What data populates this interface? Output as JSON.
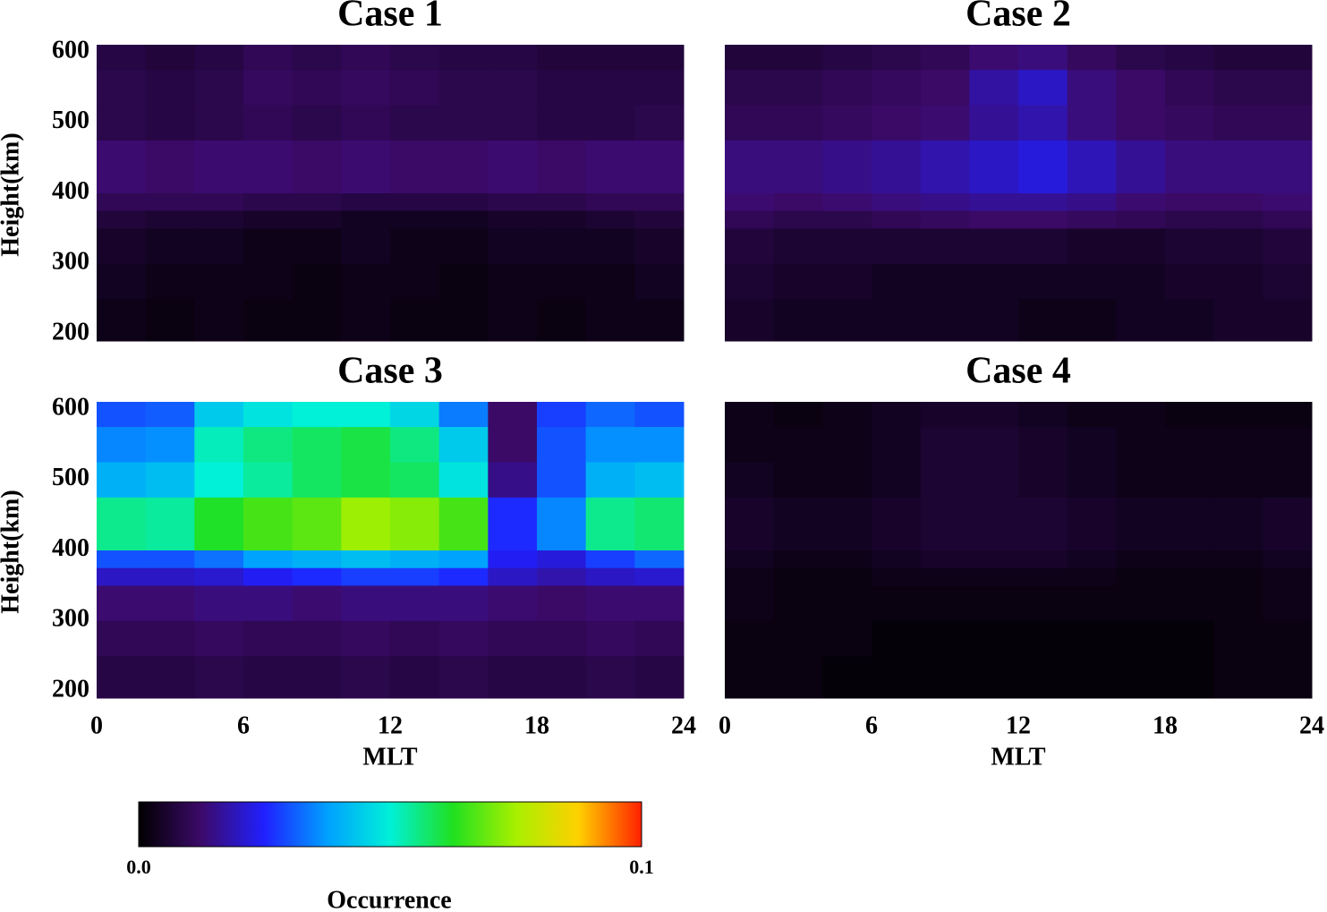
{
  "chart_data": [
    {
      "type": "heatmap",
      "title": "Case 1",
      "y_label": "Height(km)",
      "x_bins": [
        0,
        2,
        4,
        6,
        8,
        10,
        12,
        14,
        16,
        18,
        20,
        22,
        24
      ],
      "y_bins": [
        190,
        250,
        300,
        350,
        375,
        400,
        475,
        525,
        575,
        610
      ],
      "xlim": [
        0,
        24
      ],
      "ylim": [
        190,
        610
      ],
      "yticks": [
        200,
        300,
        400,
        500,
        600
      ],
      "values": [
        [
          0.003,
          0.002,
          0.003,
          0.002,
          0.002,
          0.003,
          0.002,
          0.002,
          0.003,
          0.002,
          0.003,
          0.003
        ],
        [
          0.004,
          0.003,
          0.003,
          0.003,
          0.002,
          0.003,
          0.003,
          0.002,
          0.003,
          0.003,
          0.003,
          0.004
        ],
        [
          0.005,
          0.004,
          0.004,
          0.003,
          0.003,
          0.004,
          0.003,
          0.003,
          0.004,
          0.004,
          0.004,
          0.005
        ],
        [
          0.007,
          0.006,
          0.006,
          0.005,
          0.005,
          0.004,
          0.004,
          0.004,
          0.005,
          0.005,
          0.006,
          0.007
        ],
        [
          0.01,
          0.01,
          0.01,
          0.009,
          0.009,
          0.008,
          0.008,
          0.008,
          0.009,
          0.009,
          0.01,
          0.01
        ],
        [
          0.013,
          0.012,
          0.013,
          0.013,
          0.012,
          0.013,
          0.012,
          0.012,
          0.013,
          0.012,
          0.013,
          0.013
        ],
        [
          0.009,
          0.008,
          0.009,
          0.01,
          0.009,
          0.01,
          0.009,
          0.009,
          0.009,
          0.008,
          0.008,
          0.009
        ],
        [
          0.009,
          0.008,
          0.009,
          0.011,
          0.01,
          0.011,
          0.01,
          0.009,
          0.009,
          0.008,
          0.008,
          0.008
        ],
        [
          0.008,
          0.007,
          0.008,
          0.01,
          0.009,
          0.01,
          0.009,
          0.008,
          0.008,
          0.007,
          0.007,
          0.007
        ]
      ]
    },
    {
      "type": "heatmap",
      "title": "Case 2",
      "x_bins": [
        0,
        2,
        4,
        6,
        8,
        10,
        12,
        14,
        16,
        18,
        20,
        22,
        24
      ],
      "y_bins": [
        190,
        250,
        300,
        350,
        375,
        400,
        475,
        525,
        575,
        610
      ],
      "xlim": [
        0,
        24
      ],
      "ylim": [
        190,
        610
      ],
      "values": [
        [
          0.005,
          0.004,
          0.004,
          0.004,
          0.004,
          0.004,
          0.003,
          0.003,
          0.004,
          0.004,
          0.005,
          0.005
        ],
        [
          0.006,
          0.005,
          0.005,
          0.004,
          0.004,
          0.004,
          0.004,
          0.004,
          0.004,
          0.005,
          0.005,
          0.006
        ],
        [
          0.007,
          0.006,
          0.006,
          0.006,
          0.006,
          0.006,
          0.006,
          0.005,
          0.005,
          0.006,
          0.006,
          0.007
        ],
        [
          0.01,
          0.009,
          0.009,
          0.01,
          0.011,
          0.012,
          0.012,
          0.011,
          0.01,
          0.009,
          0.009,
          0.01
        ],
        [
          0.013,
          0.012,
          0.013,
          0.014,
          0.015,
          0.016,
          0.016,
          0.015,
          0.013,
          0.012,
          0.012,
          0.013
        ],
        [
          0.014,
          0.014,
          0.015,
          0.016,
          0.018,
          0.02,
          0.022,
          0.019,
          0.016,
          0.014,
          0.014,
          0.014
        ],
        [
          0.01,
          0.01,
          0.011,
          0.012,
          0.013,
          0.016,
          0.018,
          0.014,
          0.012,
          0.011,
          0.01,
          0.01
        ],
        [
          0.009,
          0.009,
          0.01,
          0.011,
          0.012,
          0.017,
          0.02,
          0.014,
          0.012,
          0.01,
          0.009,
          0.009
        ],
        [
          0.007,
          0.007,
          0.008,
          0.009,
          0.01,
          0.013,
          0.014,
          0.011,
          0.009,
          0.008,
          0.007,
          0.007
        ]
      ]
    },
    {
      "type": "heatmap",
      "title": "Case 3",
      "y_label": "Height(km)",
      "x_label": "MLT",
      "x_bins": [
        0,
        2,
        4,
        6,
        8,
        10,
        12,
        14,
        16,
        18,
        20,
        22,
        24
      ],
      "y_bins": [
        190,
        250,
        300,
        350,
        375,
        400,
        475,
        525,
        575,
        610
      ],
      "xlim": [
        0,
        24
      ],
      "ylim": [
        190,
        610
      ],
      "xticks": [
        0,
        6,
        12,
        18,
        24
      ],
      "yticks": [
        200,
        300,
        400,
        500,
        600
      ],
      "values": [
        [
          0.008,
          0.008,
          0.009,
          0.008,
          0.008,
          0.009,
          0.008,
          0.009,
          0.008,
          0.008,
          0.009,
          0.008
        ],
        [
          0.01,
          0.01,
          0.011,
          0.01,
          0.01,
          0.011,
          0.01,
          0.011,
          0.01,
          0.01,
          0.011,
          0.01
        ],
        [
          0.013,
          0.013,
          0.014,
          0.014,
          0.013,
          0.014,
          0.014,
          0.014,
          0.013,
          0.012,
          0.013,
          0.013
        ],
        [
          0.02,
          0.02,
          0.021,
          0.024,
          0.026,
          0.028,
          0.028,
          0.026,
          0.02,
          0.018,
          0.02,
          0.021
        ],
        [
          0.03,
          0.03,
          0.033,
          0.038,
          0.04,
          0.042,
          0.04,
          0.038,
          0.024,
          0.022,
          0.028,
          0.032
        ],
        [
          0.055,
          0.054,
          0.062,
          0.066,
          0.068,
          0.074,
          0.072,
          0.066,
          0.026,
          0.035,
          0.055,
          0.057
        ],
        [
          0.04,
          0.042,
          0.05,
          0.054,
          0.058,
          0.06,
          0.058,
          0.048,
          0.015,
          0.03,
          0.04,
          0.042
        ],
        [
          0.035,
          0.036,
          0.052,
          0.056,
          0.058,
          0.06,
          0.056,
          0.044,
          0.012,
          0.03,
          0.036,
          0.036
        ],
        [
          0.03,
          0.031,
          0.044,
          0.048,
          0.05,
          0.05,
          0.046,
          0.034,
          0.012,
          0.028,
          0.032,
          0.03
        ]
      ]
    },
    {
      "type": "heatmap",
      "title": "Case 4",
      "x_label": "MLT",
      "x_bins": [
        0,
        2,
        4,
        6,
        8,
        10,
        12,
        14,
        16,
        18,
        20,
        22,
        24
      ],
      "y_bins": [
        190,
        250,
        300,
        350,
        375,
        400,
        475,
        525,
        575,
        610
      ],
      "xlim": [
        0,
        24
      ],
      "ylim": [
        190,
        610
      ],
      "xticks": [
        0,
        6,
        12,
        18,
        24
      ],
      "values": [
        [
          0.002,
          0.002,
          0.001,
          0.001,
          0.001,
          0.001,
          0.001,
          0.001,
          0.001,
          0.001,
          0.002,
          0.002
        ],
        [
          0.002,
          0.002,
          0.002,
          0.001,
          0.001,
          0.001,
          0.001,
          0.001,
          0.001,
          0.001,
          0.002,
          0.002
        ],
        [
          0.003,
          0.002,
          0.002,
          0.002,
          0.002,
          0.002,
          0.002,
          0.002,
          0.002,
          0.002,
          0.002,
          0.003
        ],
        [
          0.003,
          0.002,
          0.002,
          0.003,
          0.003,
          0.003,
          0.003,
          0.003,
          0.002,
          0.002,
          0.002,
          0.003
        ],
        [
          0.004,
          0.003,
          0.003,
          0.004,
          0.005,
          0.005,
          0.005,
          0.004,
          0.003,
          0.003,
          0.003,
          0.004
        ],
        [
          0.005,
          0.004,
          0.004,
          0.005,
          0.006,
          0.006,
          0.006,
          0.005,
          0.004,
          0.004,
          0.004,
          0.005
        ],
        [
          0.004,
          0.003,
          0.003,
          0.004,
          0.006,
          0.006,
          0.005,
          0.004,
          0.003,
          0.003,
          0.003,
          0.003
        ],
        [
          0.003,
          0.003,
          0.003,
          0.004,
          0.006,
          0.006,
          0.005,
          0.004,
          0.003,
          0.003,
          0.003,
          0.003
        ],
        [
          0.003,
          0.002,
          0.003,
          0.004,
          0.005,
          0.005,
          0.004,
          0.003,
          0.003,
          0.002,
          0.002,
          0.002
        ]
      ]
    }
  ],
  "colorbar": {
    "label": "Occurrence",
    "clim": [
      0,
      0.1
    ],
    "ticks": [
      {
        "value": 0,
        "label": "0.0"
      },
      {
        "value": 0.1,
        "label": "0.1"
      }
    ],
    "colormap": [
      "#000000",
      "#3c0a6a",
      "#2020ff",
      "#00a0ff",
      "#00f0d8",
      "#20e020",
      "#a8f000",
      "#ffd000",
      "#ff2000"
    ]
  }
}
